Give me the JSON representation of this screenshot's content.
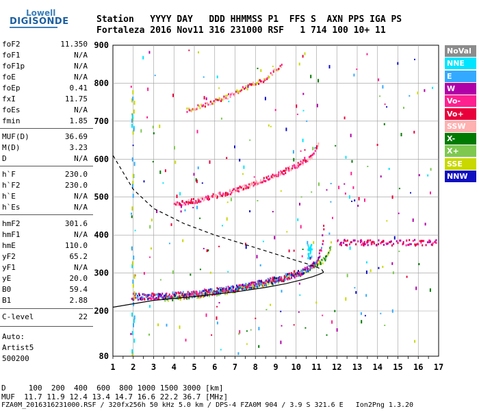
{
  "logo": {
    "line1": "Lowell",
    "line2": "DIGISONDE"
  },
  "header": {
    "labels": "Station   YYYY DAY   DDD HHMMSS P1  FFS S  AXN PPS IGA PS",
    "values": "Fortaleza 2016 Nov11 316 231000 RSF   1 714 100 10+ 11"
  },
  "params": [
    {
      "name": "foF2",
      "value": "11.350"
    },
    {
      "name": "foF1",
      "value": "N/A"
    },
    {
      "name": "foF1p",
      "value": "N/A"
    },
    {
      "name": "foE",
      "value": "N/A"
    },
    {
      "name": "foEp",
      "value": "0.41"
    },
    {
      "name": "fxI",
      "value": "11.75"
    },
    {
      "name": "foEs",
      "value": "N/A"
    },
    {
      "name": "fmin",
      "value": "1.85"
    },
    {
      "name": "MUF(D)",
      "value": "36.69"
    },
    {
      "name": "M(D)",
      "value": "3.23"
    },
    {
      "name": "D",
      "value": "N/A"
    },
    {
      "name": "h`F",
      "value": "230.0"
    },
    {
      "name": "h`F2",
      "value": "230.0"
    },
    {
      "name": "h`E",
      "value": "N/A"
    },
    {
      "name": "h`Es",
      "value": "N/A"
    },
    {
      "name": "hmF2",
      "value": "301.6"
    },
    {
      "name": "hmF1",
      "value": "N/A"
    },
    {
      "name": "hmE",
      "value": "110.0"
    },
    {
      "name": "yF2",
      "value": "65.2"
    },
    {
      "name": "yF1",
      "value": "N/A"
    },
    {
      "name": "yE",
      "value": "20.0"
    },
    {
      "name": "B0",
      "value": "59.4"
    },
    {
      "name": "B1",
      "value": "2.88"
    },
    {
      "name": "C-level",
      "value": "22"
    }
  ],
  "auto": {
    "line1": "Auto:",
    "line2": "Artist5",
    "line3": "500200"
  },
  "footer": {
    "line1": "D     100  200  400  600  800 1000 1500 3000 [km]",
    "line2": "MUF  11.7 11.9 12.4 13.4 14.7 16.6 22.2 36.7 [MHz]",
    "line3": "FZA0M_2016316231000.RSF / 320fx256h 50 kHz 5.0 km / DPS-4 FZA0M 904 / 3.9 S 321.6 E   Ion2Png 1.3.20"
  },
  "legend": [
    {
      "label": "NoVal",
      "color": "#8c8c8c"
    },
    {
      "label": "NNE",
      "color": "#00e5ff"
    },
    {
      "label": "E",
      "color": "#33aaff"
    },
    {
      "label": "W",
      "color": "#b000a8"
    },
    {
      "label": "Vo-",
      "color": "#ff2090"
    },
    {
      "label": "Vo+",
      "color": "#e8003a"
    },
    {
      "label": "SSW",
      "color": "#ffb0b0"
    },
    {
      "label": "X-",
      "color": "#007a00"
    },
    {
      "label": "X+",
      "color": "#7ec850"
    },
    {
      "label": "SSE",
      "color": "#c8d800"
    },
    {
      "label": "NNW",
      "color": "#1010c0"
    }
  ],
  "chart_data": {
    "type": "scatter",
    "xlim": [
      1,
      17
    ],
    "ylim": [
      80,
      900
    ],
    "x_ticks": [
      1,
      2,
      3,
      4,
      5,
      6,
      7,
      8,
      9,
      10,
      11,
      12,
      13,
      14,
      15,
      16,
      17
    ],
    "y_ticks": [
      80,
      200,
      300,
      400,
      500,
      600,
      700,
      800,
      900
    ],
    "grid": true,
    "o_trace": {
      "x": [
        1.9,
        2.5,
        3.5,
        4.5,
        5.5,
        6.5,
        7.5,
        8.5,
        9.5,
        10.2,
        10.7,
        11.0,
        11.2,
        11.35
      ],
      "y": [
        240,
        240,
        242,
        245,
        250,
        258,
        266,
        278,
        292,
        305,
        318,
        335,
        360,
        440
      ]
    },
    "x_trace": {
      "x": [
        3.5,
        4.5,
        5.5,
        6.5,
        7.5,
        8.5,
        9.5,
        10.2,
        10.8,
        11.3,
        11.6,
        11.75
      ],
      "y": [
        235,
        240,
        246,
        254,
        264,
        276,
        290,
        302,
        318,
        335,
        360,
        385
      ]
    },
    "second_hop": {
      "x": [
        4.0,
        5.0,
        6.0,
        7.0,
        8.0,
        9.0,
        10.0,
        10.7,
        11.1
      ],
      "y": [
        485,
        492,
        505,
        520,
        540,
        560,
        585,
        610,
        640
      ]
    },
    "third_hop": {
      "x": [
        4.6,
        5.5,
        6.5,
        7.5,
        8.5,
        9.3
      ],
      "y": [
        730,
        745,
        765,
        790,
        815,
        850
      ]
    },
    "profile": {
      "x": [
        1.0,
        3.0,
        5.0,
        7.0,
        8.5,
        9.5,
        10.2,
        10.8,
        11.2,
        11.35,
        11.25,
        10.9,
        10.5,
        10.0,
        9.0,
        7.5,
        6.0,
        4.5,
        3.0,
        2.0,
        1.0
      ],
      "y": [
        210,
        228,
        238,
        250,
        262,
        272,
        281,
        290,
        298,
        302,
        310,
        318,
        325,
        333,
        350,
        375,
        400,
        430,
        470,
        520,
        610
      ]
    }
  }
}
